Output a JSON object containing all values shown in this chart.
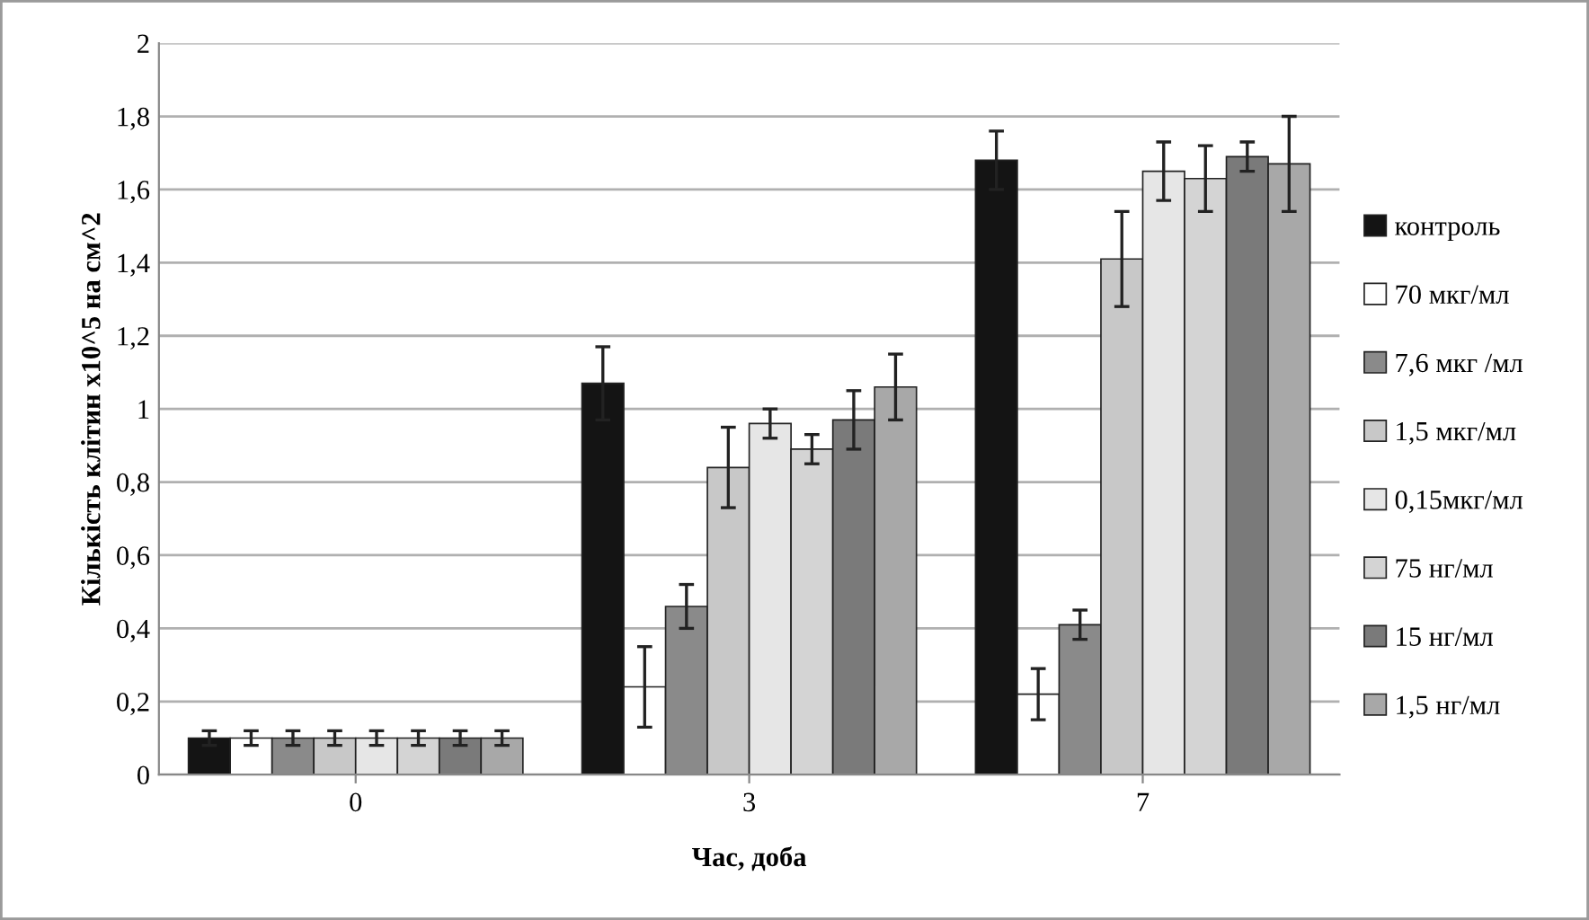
{
  "chart_data": {
    "type": "bar",
    "xlabel": "Час, доба",
    "ylabel": "Кількість клітин х10^5 на см^2",
    "categories": [
      "0",
      "3",
      "7"
    ],
    "ylim": [
      0,
      2
    ],
    "yticks": [
      0,
      {
        "value": 0.2,
        "label": "0,2"
      },
      {
        "value": 0.4,
        "label": "0,4"
      },
      {
        "value": 0.6,
        "label": "0,6"
      },
      {
        "value": 0.8,
        "label": "0,8"
      },
      1,
      {
        "value": 1.2,
        "label": "1,2"
      },
      {
        "value": 1.4,
        "label": "1,4"
      },
      {
        "value": 1.6,
        "label": "1,6"
      },
      {
        "value": 1.8,
        "label": "1,8"
      },
      2
    ],
    "grid": "y",
    "legend": "right",
    "series": [
      {
        "name": "контроль",
        "color": "#141414",
        "values": [
          0.1,
          1.07,
          1.68
        ],
        "errors": [
          0.02,
          0.1,
          0.08
        ]
      },
      {
        "name": "70 мкг/мл",
        "color": "#ffffff",
        "values": [
          0.1,
          0.24,
          0.22
        ],
        "errors": [
          0.02,
          0.11,
          0.07
        ]
      },
      {
        "name": "7,6 мкг /мл",
        "color": "#8a8a8a",
        "values": [
          0.1,
          0.46,
          0.41
        ],
        "errors": [
          0.02,
          0.06,
          0.04
        ]
      },
      {
        "name": "1,5 мкг/мл",
        "color": "#c8c8c8",
        "values": [
          0.1,
          0.84,
          1.41
        ],
        "errors": [
          0.02,
          0.11,
          0.13
        ]
      },
      {
        "name": "0,15мкг/мл",
        "color": "#e6e6e6",
        "values": [
          0.1,
          0.96,
          1.65
        ],
        "errors": [
          0.02,
          0.04,
          0.08
        ]
      },
      {
        "name": "75 нг/мл",
        "color": "#d4d4d4",
        "values": [
          0.1,
          0.89,
          1.63
        ],
        "errors": [
          0.02,
          0.04,
          0.09
        ]
      },
      {
        "name": "15 нг/мл",
        "color": "#7a7a7a",
        "values": [
          0.1,
          0.97,
          1.69
        ],
        "errors": [
          0.02,
          0.08,
          0.04
        ]
      },
      {
        "name": "1,5 нг/мл",
        "color": "#a8a8a8",
        "values": [
          0.1,
          1.06,
          1.67
        ],
        "errors": [
          0.02,
          0.09,
          0.13
        ]
      }
    ]
  }
}
